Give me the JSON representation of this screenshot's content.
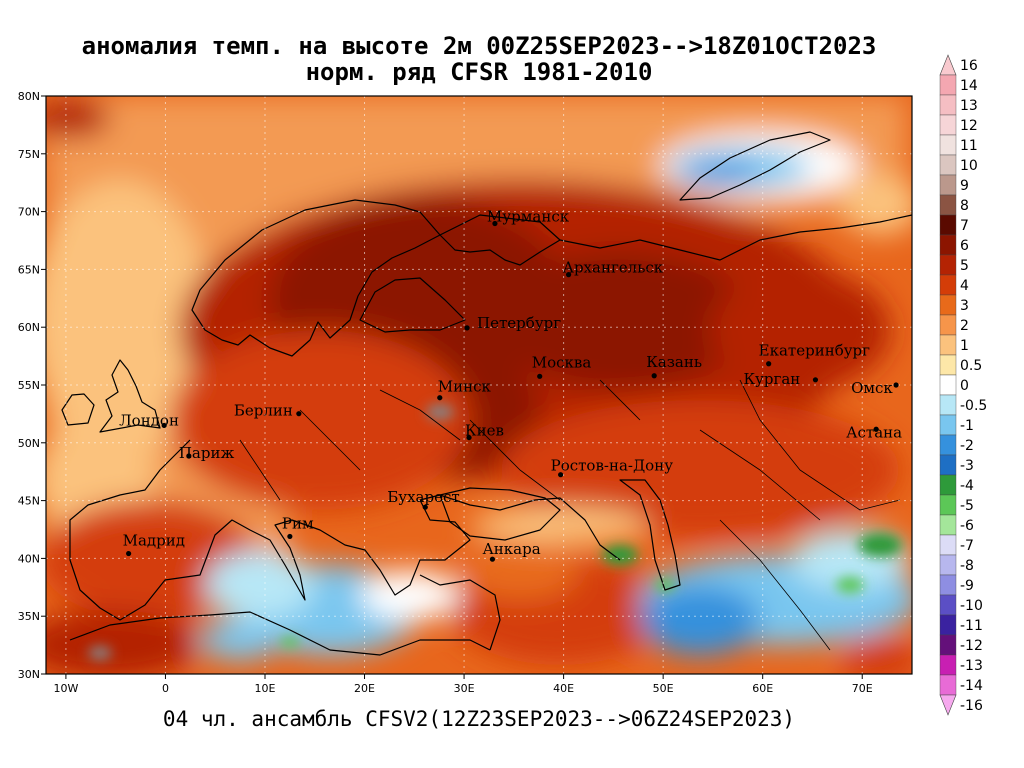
{
  "title": {
    "line1": "аномалия темп. на высоте 2м 00Z25SEP2023-->18Z01OCT2023",
    "line2": "норм. ряд CFSR 1981-2010"
  },
  "footer": "04 чл. ансамбль CFSV2(12Z23SEP2023-->06Z24SEP2023)",
  "map": {
    "lon_range": [
      -12,
      75
    ],
    "lat_range": [
      30,
      80
    ],
    "lon_ticks": [
      {
        "value": -10,
        "label": "10W"
      },
      {
        "value": 0,
        "label": "0"
      },
      {
        "value": 10,
        "label": "10E"
      },
      {
        "value": 20,
        "label": "20E"
      },
      {
        "value": 30,
        "label": "30E"
      },
      {
        "value": 40,
        "label": "40E"
      },
      {
        "value": 50,
        "label": "50E"
      },
      {
        "value": 60,
        "label": "60E"
      },
      {
        "value": 70,
        "label": "70E"
      }
    ],
    "lat_ticks": [
      {
        "value": 30,
        "label": "30N"
      },
      {
        "value": 35,
        "label": "35N"
      },
      {
        "value": 40,
        "label": "40N"
      },
      {
        "value": 45,
        "label": "45N"
      },
      {
        "value": 50,
        "label": "50N"
      },
      {
        "value": 55,
        "label": "55N"
      },
      {
        "value": 60,
        "label": "60N"
      },
      {
        "value": 65,
        "label": "65N"
      },
      {
        "value": 70,
        "label": "70N"
      },
      {
        "value": 75,
        "label": "75N"
      },
      {
        "value": 80,
        "label": "80N"
      }
    ],
    "cities": [
      {
        "name": "Мурманск",
        "lon": 33.1,
        "lat": 68.97
      },
      {
        "name": "Архангельск",
        "lon": 40.5,
        "lat": 64.55
      },
      {
        "name": "Петербург",
        "lon": 30.3,
        "lat": 59.94
      },
      {
        "name": "Москва",
        "lon": 37.6,
        "lat": 55.75
      },
      {
        "name": "Казань",
        "lon": 49.1,
        "lat": 55.8
      },
      {
        "name": "Екатеринбург",
        "lon": 60.6,
        "lat": 56.84
      },
      {
        "name": "Курган",
        "lon": 65.3,
        "lat": 55.45
      },
      {
        "name": "Омск",
        "lon": 73.4,
        "lat": 55.0
      },
      {
        "name": "Астана",
        "lon": 71.4,
        "lat": 51.17
      },
      {
        "name": "Минск",
        "lon": 27.56,
        "lat": 53.9
      },
      {
        "name": "Киев",
        "lon": 30.5,
        "lat": 50.45
      },
      {
        "name": "Берлин",
        "lon": 13.4,
        "lat": 52.52
      },
      {
        "name": "Лондон",
        "lon": -0.13,
        "lat": 51.5
      },
      {
        "name": "Париж",
        "lon": 2.35,
        "lat": 48.86
      },
      {
        "name": "Ростов-на-Дону",
        "lon": 39.7,
        "lat": 47.24
      },
      {
        "name": "Бухарест",
        "lon": 26.1,
        "lat": 44.43
      },
      {
        "name": "Рим",
        "lon": 12.5,
        "lat": 41.9
      },
      {
        "name": "Мадрид",
        "lon": -3.7,
        "lat": 40.42
      },
      {
        "name": "Анкара",
        "lon": 32.85,
        "lat": 39.93
      }
    ]
  },
  "colorbar": {
    "labels": [
      "16",
      "14",
      "13",
      "12",
      "11",
      "10",
      "9",
      "8",
      "7",
      "6",
      "5",
      "4",
      "3",
      "2",
      "1",
      "0.5",
      "0",
      "-0.5",
      "-1",
      "-2",
      "-3",
      "-4",
      "-5",
      "-6",
      "-7",
      "-8",
      "-9",
      "-10",
      "-11",
      "-12",
      "-13",
      "-14",
      "-16"
    ],
    "colors": [
      "#f9cacf",
      "#f4a7b1",
      "#f5bec3",
      "#f6d5d7",
      "#f0e2df",
      "#dbc6c0",
      "#bb988c",
      "#8b5443",
      "#5a0a00",
      "#8c1500",
      "#b42303",
      "#d43d08",
      "#e86a1a",
      "#f6954a",
      "#fbc27d",
      "#fde7a8",
      "#ffffff",
      "#b7e7f6",
      "#79c6ef",
      "#3591dd",
      "#1e6fc4",
      "#2e9a3a",
      "#5cc757",
      "#a4e69a",
      "#dcdcf6",
      "#b7b7ee",
      "#8e8ee2",
      "#5b4fc5",
      "#3a22a0",
      "#64107a",
      "#c81fb2",
      "#e86bd6",
      "#f6a9ee"
    ]
  }
}
